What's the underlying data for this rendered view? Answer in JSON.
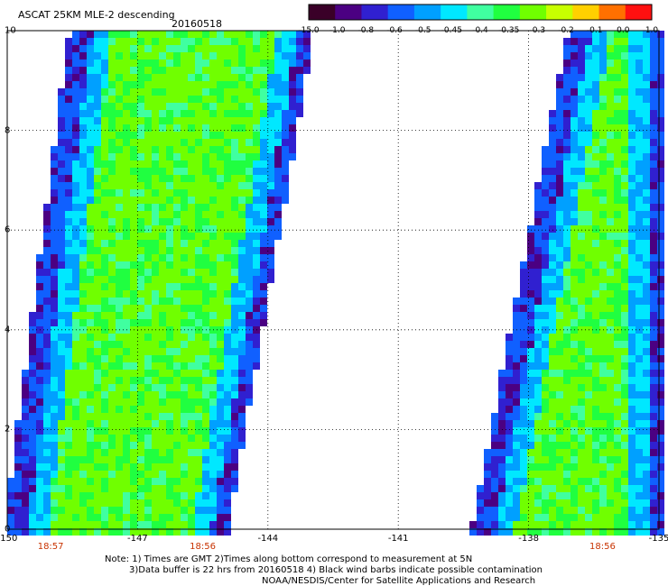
{
  "title": "ASCAT 25KM MLE-2 descending",
  "date": "20160518",
  "colorbar": {
    "labels": [
      "-15.0",
      "-1.0",
      "-0.8",
      "-0.6",
      "-0.5",
      "-0.45",
      "-0.4",
      "-0.35",
      "-0.3",
      "-0.2",
      "-0.1",
      "0.0",
      "1.0"
    ],
    "colors": [
      "#3a0028",
      "#4b0082",
      "#3020d0",
      "#1060ff",
      "#00a0ff",
      "#00e8ff",
      "#40ffa0",
      "#20ff40",
      "#70ff00",
      "#c8ff00",
      "#ffd000",
      "#ff7000",
      "#ff1010"
    ]
  },
  "map": {
    "lon_range": [
      -150,
      -135
    ],
    "lat_range": [
      0,
      10
    ],
    "x_ticks": [
      "-150",
      "-147",
      "-144",
      "-141",
      "-138",
      "-135"
    ],
    "y_ticks": [
      "0",
      "2",
      "4",
      "6",
      "8",
      "10"
    ],
    "times": [
      {
        "label": "18:57",
        "lon": -149
      },
      {
        "label": "18:56",
        "lon": -145.5
      },
      {
        "label": "18:56",
        "lon": -136.3
      }
    ]
  },
  "notes": [
    "Note: 1) Times are GMT 2)Times along bottom correspond to measurement at 5N",
    "3)Data buffer is 22 hrs from 20160518 4) Black wind barbs indicate possible contamination",
    "NOAA/NESDIS/Center for Satellite Applications and Research"
  ]
}
